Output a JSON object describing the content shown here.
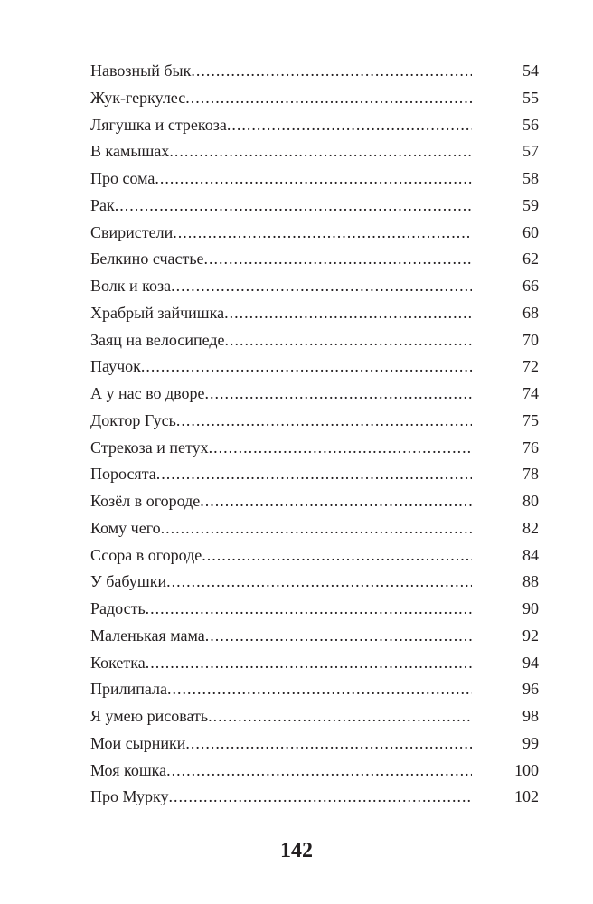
{
  "toc": [
    {
      "title": "Навозный бык",
      "page": "54"
    },
    {
      "title": "Жук-геркулес",
      "page": "55"
    },
    {
      "title": "Лягушка и стрекоза",
      "page": "56"
    },
    {
      "title": "В камышах",
      "page": "57"
    },
    {
      "title": "Про сома",
      "page": "58"
    },
    {
      "title": "Рак",
      "page": "59"
    },
    {
      "title": "Свиристели",
      "page": "60"
    },
    {
      "title": "Белкино счастье",
      "page": "62"
    },
    {
      "title": "Волк и коза",
      "page": "66"
    },
    {
      "title": "Храбрый зайчишка",
      "page": "68"
    },
    {
      "title": "Заяц на велосипеде",
      "page": "70"
    },
    {
      "title": "Паучок",
      "page": "72"
    },
    {
      "title": "А у нас во дворе",
      "page": "74"
    },
    {
      "title": "Доктор Гусь",
      "page": "75"
    },
    {
      "title": "Стрекоза и петух",
      "page": "76"
    },
    {
      "title": "Поросята",
      "page": "78"
    },
    {
      "title": "Козёл в огороде",
      "page": "80"
    },
    {
      "title": "Кому чего",
      "page": "82"
    },
    {
      "title": "Ссора в огороде",
      "page": "84"
    },
    {
      "title": "У бабушки",
      "page": "88"
    },
    {
      "title": "Радость",
      "page": "90"
    },
    {
      "title": "Маленькая мама",
      "page": "92"
    },
    {
      "title": "Кокетка",
      "page": "94"
    },
    {
      "title": "Прилипала",
      "page": "96"
    },
    {
      "title": "Я умею рисовать",
      "page": "98"
    },
    {
      "title": "Мои сырники",
      "page": "99"
    },
    {
      "title": "Моя кошка",
      "page": "100"
    },
    {
      "title": "Про Мурку",
      "page": "102"
    }
  ],
  "page_number": "142"
}
